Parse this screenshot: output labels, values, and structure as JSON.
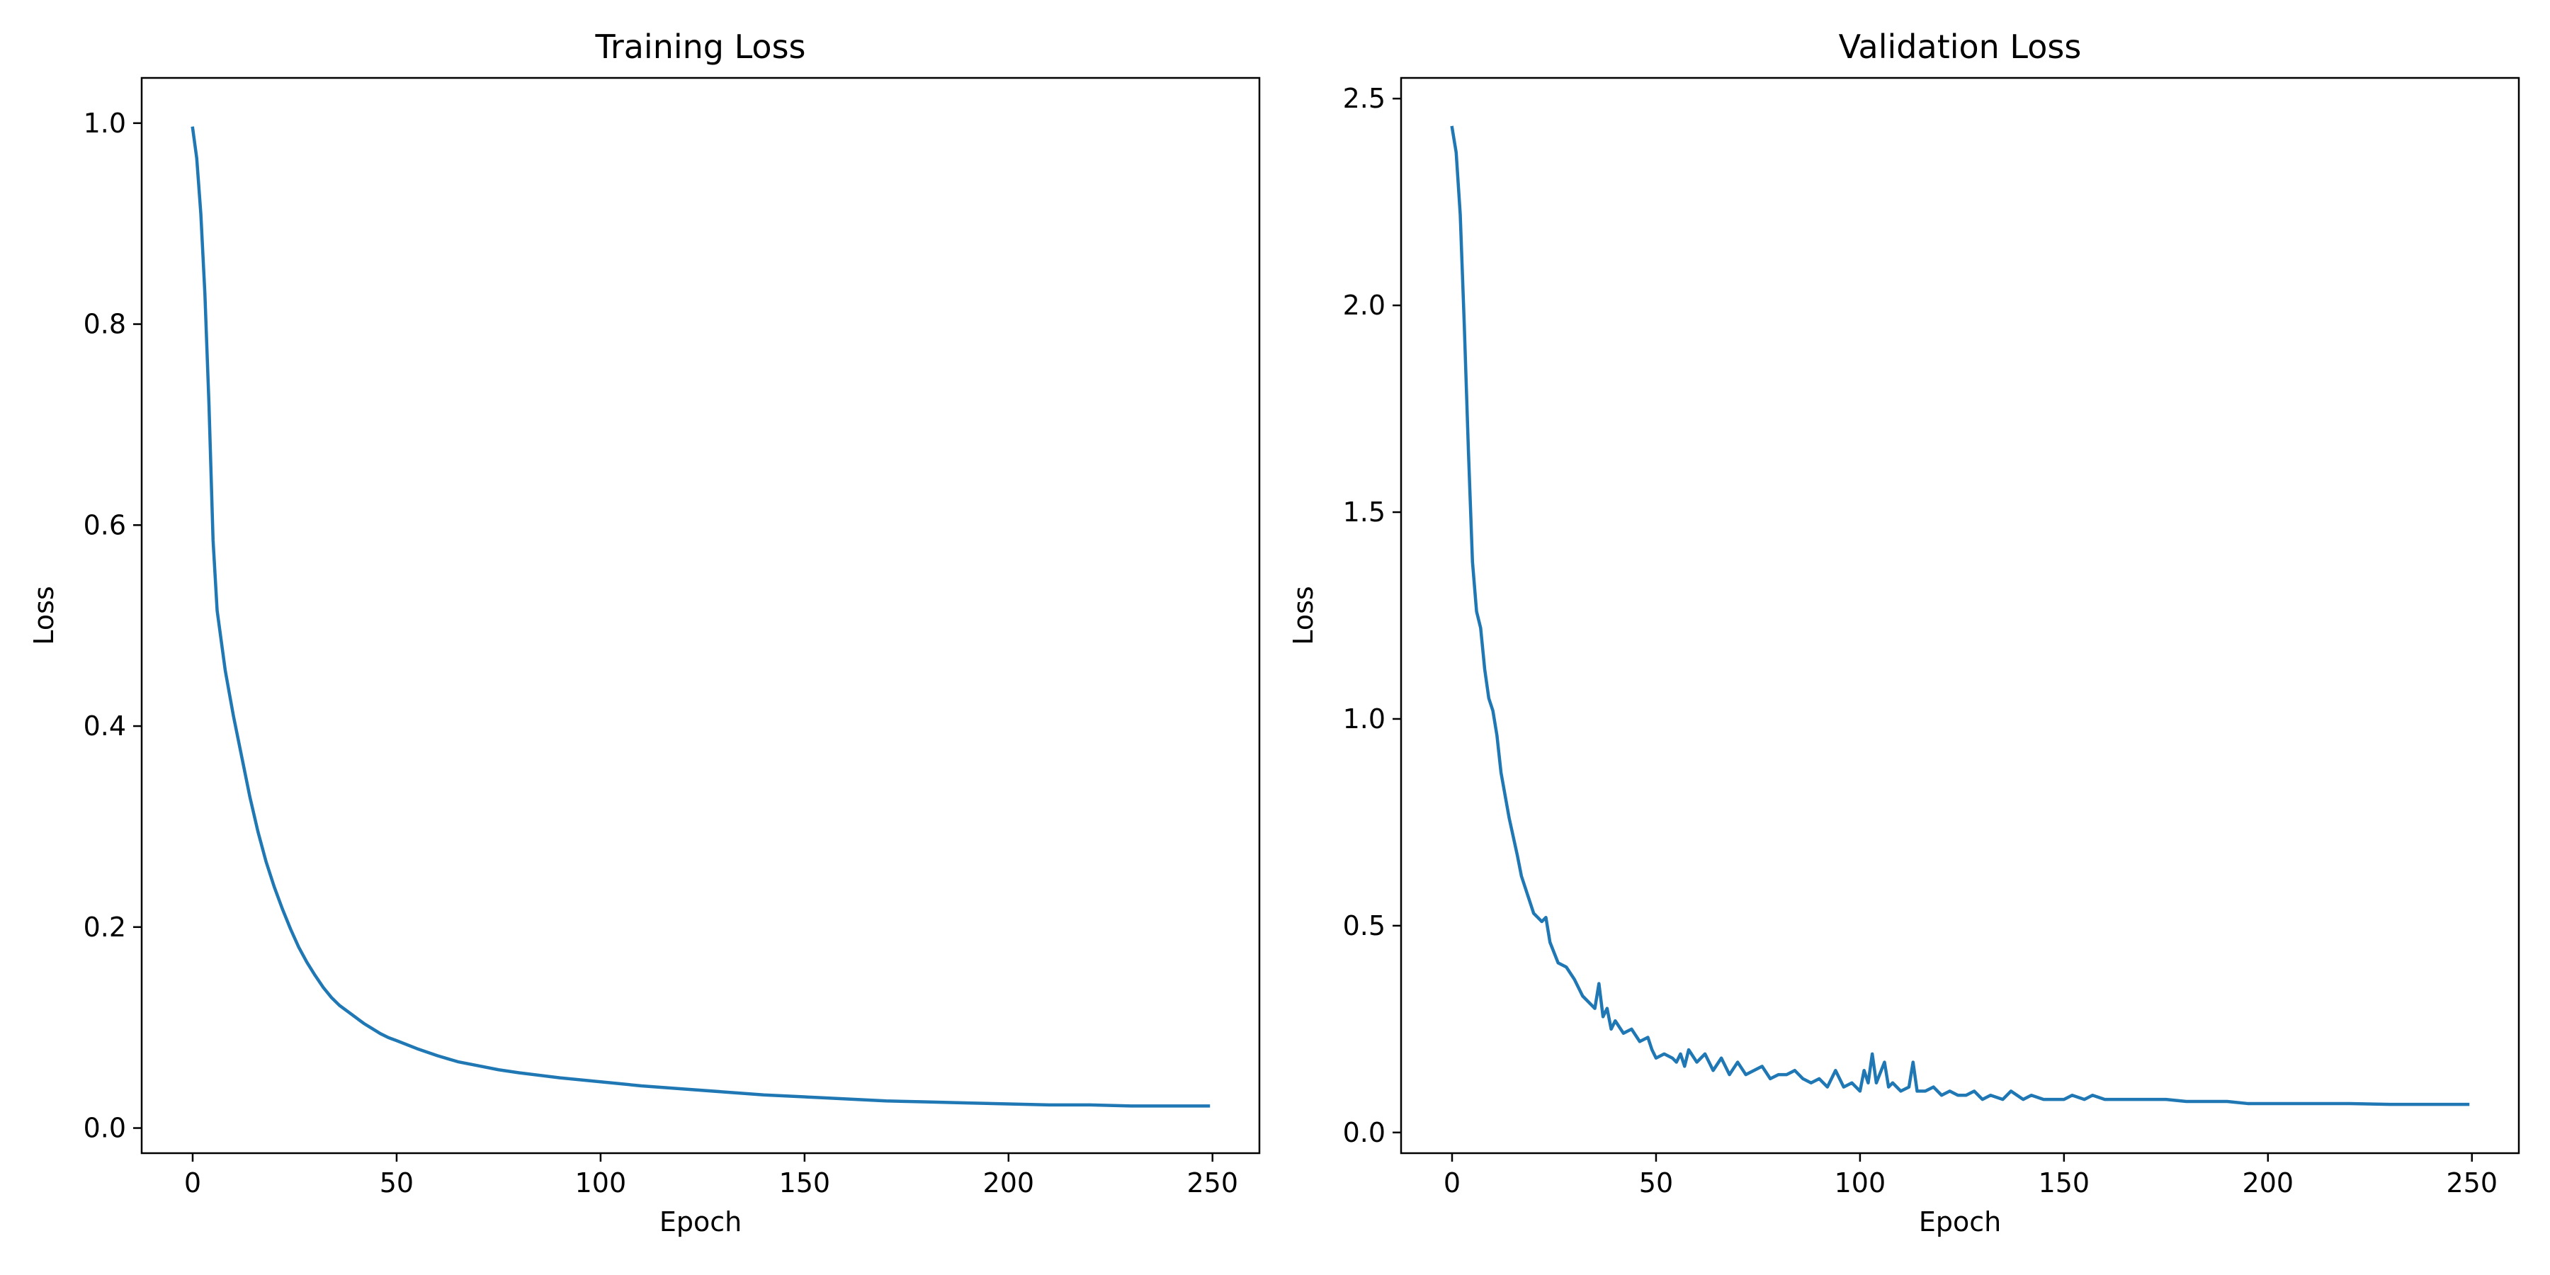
{
  "chart_data": [
    {
      "type": "line",
      "title": "Training Loss",
      "xlabel": "Epoch",
      "ylabel": "Loss",
      "xlim": [
        -12.5,
        261.5
      ],
      "ylim": [
        -0.025,
        1.045
      ],
      "xticks": [
        0,
        50,
        100,
        150,
        200,
        250
      ],
      "xtick_labels": [
        "0",
        "50",
        "100",
        "150",
        "200",
        "250"
      ],
      "yticks": [
        0.0,
        0.2,
        0.4,
        0.6,
        0.8,
        1.0
      ],
      "ytick_labels": [
        "0.0",
        "0.2",
        "0.4",
        "0.6",
        "0.8",
        "1.0"
      ],
      "grid": false,
      "series": [
        {
          "color": "#1f77b4",
          "points": [
            [
              0,
              0.995
            ],
            [
              1,
              0.965
            ],
            [
              2,
              0.91
            ],
            [
              3,
              0.83
            ],
            [
              4,
              0.72
            ],
            [
              5,
              0.585
            ],
            [
              6,
              0.515
            ],
            [
              8,
              0.455
            ],
            [
              10,
              0.41
            ],
            [
              12,
              0.37
            ],
            [
              14,
              0.33
            ],
            [
              16,
              0.295
            ],
            [
              18,
              0.265
            ],
            [
              20,
              0.24
            ],
            [
              22,
              0.218
            ],
            [
              24,
              0.198
            ],
            [
              26,
              0.18
            ],
            [
              28,
              0.165
            ],
            [
              30,
              0.152
            ],
            [
              32,
              0.14
            ],
            [
              34,
              0.13
            ],
            [
              36,
              0.122
            ],
            [
              38,
              0.116
            ],
            [
              40,
              0.11
            ],
            [
              42,
              0.104
            ],
            [
              44,
              0.099
            ],
            [
              46,
              0.094
            ],
            [
              48,
              0.09
            ],
            [
              50,
              0.087
            ],
            [
              55,
              0.079
            ],
            [
              60,
              0.072
            ],
            [
              65,
              0.066
            ],
            [
              70,
              0.062
            ],
            [
              75,
              0.058
            ],
            [
              80,
              0.055
            ],
            [
              90,
              0.05
            ],
            [
              100,
              0.046
            ],
            [
              110,
              0.042
            ],
            [
              120,
              0.039
            ],
            [
              130,
              0.036
            ],
            [
              140,
              0.033
            ],
            [
              150,
              0.031
            ],
            [
              160,
              0.029
            ],
            [
              170,
              0.027
            ],
            [
              180,
              0.026
            ],
            [
              190,
              0.025
            ],
            [
              200,
              0.024
            ],
            [
              210,
              0.023
            ],
            [
              220,
              0.023
            ],
            [
              230,
              0.022
            ],
            [
              240,
              0.022
            ],
            [
              249,
              0.022
            ]
          ]
        }
      ]
    },
    {
      "type": "line",
      "title": "Validation Loss",
      "xlabel": "Epoch",
      "ylabel": "Loss",
      "xlim": [
        -12.5,
        261.5
      ],
      "ylim": [
        -0.05,
        2.55
      ],
      "xticks": [
        0,
        50,
        100,
        150,
        200,
        250
      ],
      "xtick_labels": [
        "0",
        "50",
        "100",
        "150",
        "200",
        "250"
      ],
      "yticks": [
        0.0,
        0.5,
        1.0,
        1.5,
        2.0,
        2.5
      ],
      "ytick_labels": [
        "0.0",
        "0.5",
        "1.0",
        "1.5",
        "2.0",
        "2.5"
      ],
      "grid": false,
      "series": [
        {
          "color": "#1f77b4",
          "points": [
            [
              0,
              2.43
            ],
            [
              1,
              2.37
            ],
            [
              2,
              2.22
            ],
            [
              3,
              1.95
            ],
            [
              4,
              1.65
            ],
            [
              5,
              1.38
            ],
            [
              6,
              1.26
            ],
            [
              7,
              1.22
            ],
            [
              8,
              1.12
            ],
            [
              9,
              1.05
            ],
            [
              10,
              1.02
            ],
            [
              11,
              0.96
            ],
            [
              12,
              0.87
            ],
            [
              14,
              0.76
            ],
            [
              16,
              0.67
            ],
            [
              17,
              0.62
            ],
            [
              18,
              0.59
            ],
            [
              19,
              0.56
            ],
            [
              20,
              0.53
            ],
            [
              21,
              0.52
            ],
            [
              22,
              0.51
            ],
            [
              23,
              0.52
            ],
            [
              24,
              0.46
            ],
            [
              26,
              0.41
            ],
            [
              28,
              0.4
            ],
            [
              30,
              0.37
            ],
            [
              32,
              0.33
            ],
            [
              34,
              0.31
            ],
            [
              35,
              0.3
            ],
            [
              36,
              0.36
            ],
            [
              37,
              0.28
            ],
            [
              38,
              0.3
            ],
            [
              39,
              0.25
            ],
            [
              40,
              0.27
            ],
            [
              42,
              0.24
            ],
            [
              44,
              0.25
            ],
            [
              46,
              0.22
            ],
            [
              48,
              0.23
            ],
            [
              49,
              0.2
            ],
            [
              50,
              0.18
            ],
            [
              52,
              0.19
            ],
            [
              54,
              0.18
            ],
            [
              55,
              0.17
            ],
            [
              56,
              0.19
            ],
            [
              57,
              0.16
            ],
            [
              58,
              0.2
            ],
            [
              60,
              0.17
            ],
            [
              62,
              0.19
            ],
            [
              64,
              0.15
            ],
            [
              66,
              0.18
            ],
            [
              68,
              0.14
            ],
            [
              70,
              0.17
            ],
            [
              72,
              0.14
            ],
            [
              74,
              0.15
            ],
            [
              76,
              0.16
            ],
            [
              78,
              0.13
            ],
            [
              80,
              0.14
            ],
            [
              82,
              0.14
            ],
            [
              84,
              0.15
            ],
            [
              86,
              0.13
            ],
            [
              88,
              0.12
            ],
            [
              90,
              0.13
            ],
            [
              92,
              0.11
            ],
            [
              94,
              0.15
            ],
            [
              96,
              0.11
            ],
            [
              98,
              0.12
            ],
            [
              100,
              0.1
            ],
            [
              101,
              0.15
            ],
            [
              102,
              0.12
            ],
            [
              103,
              0.19
            ],
            [
              104,
              0.12
            ],
            [
              106,
              0.17
            ],
            [
              107,
              0.11
            ],
            [
              108,
              0.12
            ],
            [
              110,
              0.1
            ],
            [
              112,
              0.11
            ],
            [
              113,
              0.17
            ],
            [
              114,
              0.1
            ],
            [
              116,
              0.1
            ],
            [
              118,
              0.11
            ],
            [
              120,
              0.09
            ],
            [
              122,
              0.1
            ],
            [
              124,
              0.09
            ],
            [
              126,
              0.09
            ],
            [
              128,
              0.1
            ],
            [
              130,
              0.08
            ],
            [
              132,
              0.09
            ],
            [
              135,
              0.08
            ],
            [
              137,
              0.1
            ],
            [
              140,
              0.08
            ],
            [
              142,
              0.09
            ],
            [
              145,
              0.08
            ],
            [
              148,
              0.08
            ],
            [
              150,
              0.08
            ],
            [
              152,
              0.09
            ],
            [
              155,
              0.08
            ],
            [
              157,
              0.09
            ],
            [
              160,
              0.08
            ],
            [
              165,
              0.08
            ],
            [
              170,
              0.08
            ],
            [
              175,
              0.08
            ],
            [
              180,
              0.075
            ],
            [
              185,
              0.075
            ],
            [
              190,
              0.075
            ],
            [
              195,
              0.07
            ],
            [
              200,
              0.07
            ],
            [
              210,
              0.07
            ],
            [
              220,
              0.07
            ],
            [
              230,
              0.068
            ],
            [
              240,
              0.068
            ],
            [
              249,
              0.068
            ]
          ]
        }
      ]
    }
  ]
}
